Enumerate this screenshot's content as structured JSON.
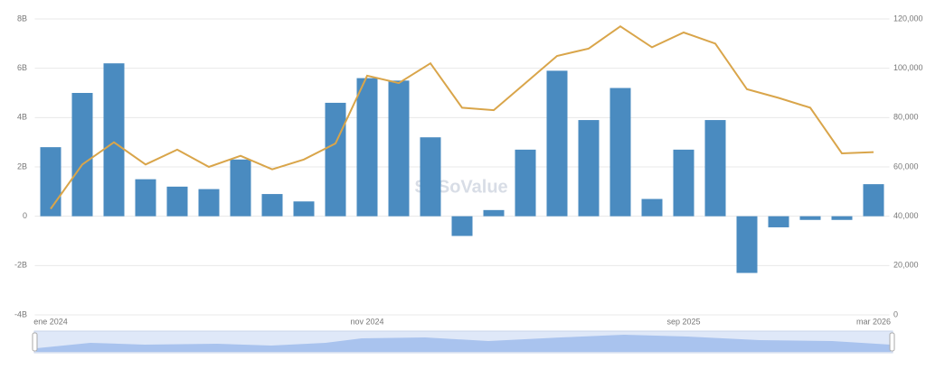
{
  "chart_data": {
    "type": "bar",
    "watermark": "SoSoValue",
    "categories": [
      "ene 2024",
      null,
      null,
      null,
      null,
      null,
      null,
      null,
      null,
      null,
      "nov 2024",
      null,
      null,
      null,
      null,
      null,
      null,
      null,
      null,
      null,
      "sep 2025",
      null,
      null,
      null,
      null,
      null,
      "mar 2026"
    ],
    "series": [
      {
        "type": "bar",
        "axis": "y",
        "color": "#4a8bc0",
        "values": [
          2.8,
          5.0,
          6.2,
          1.5,
          1.2,
          1.1,
          2.3,
          0.9,
          0.6,
          4.6,
          5.6,
          5.5,
          3.2,
          -0.8,
          0.25,
          2.7,
          5.9,
          3.9,
          5.2,
          0.7,
          2.7,
          3.9,
          -2.3,
          -0.45,
          -0.15,
          -0.15,
          1.3
        ]
      },
      {
        "type": "line",
        "axis": "y2",
        "color": "#d9a54a",
        "values": [
          43000,
          61000,
          70000,
          61000,
          67000,
          60000,
          64500,
          59000,
          63000,
          69500,
          97000,
          94000,
          102000,
          84000,
          83000,
          94000,
          105000,
          108000,
          117000,
          108500,
          114500,
          110000,
          91500,
          88000,
          84000,
          65500,
          66000
        ]
      }
    ],
    "ylim": [
      -4,
      8
    ],
    "yticks": [
      {
        "value": -4,
        "label": "-4B"
      },
      {
        "value": -2,
        "label": "-2B"
      },
      0,
      {
        "value": 2,
        "label": "2B"
      },
      {
        "value": 4,
        "label": "4B"
      },
      {
        "value": 6,
        "label": "6B"
      },
      {
        "value": 8,
        "label": "8B"
      }
    ],
    "y2lim": [
      0,
      120000
    ],
    "y2ticks": [
      0,
      {
        "value": 20000,
        "label": "20,000"
      },
      {
        "value": 40000,
        "label": "40,000"
      },
      {
        "value": 60000,
        "label": "60,000"
      },
      {
        "value": 80000,
        "label": "80,000"
      },
      {
        "value": 100000,
        "label": "100,000"
      },
      {
        "value": 120000,
        "label": "120,000"
      }
    ],
    "grid": true
  }
}
